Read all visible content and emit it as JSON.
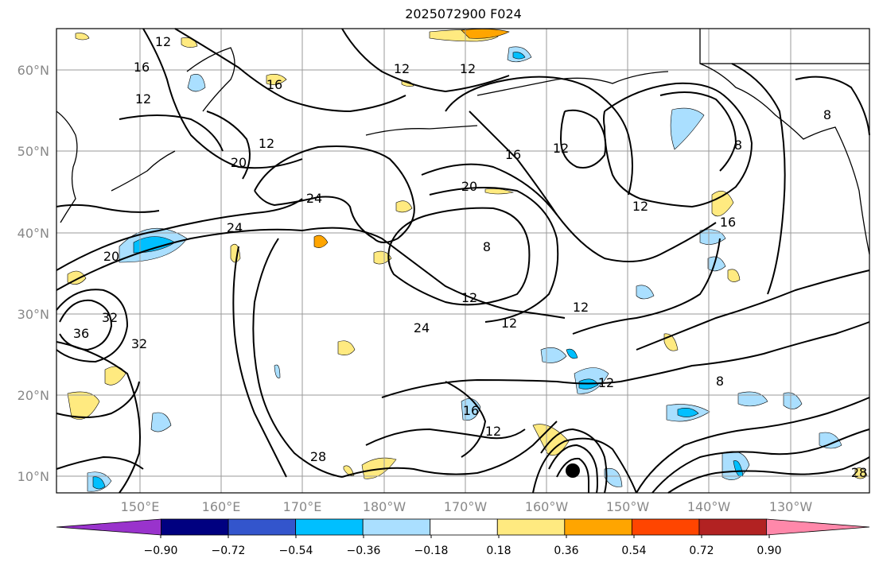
{
  "title": "2025072900 F024",
  "map": {
    "lat_labels": [
      "60°N",
      "50°N",
      "40°N",
      "30°N",
      "20°N",
      "10°N"
    ],
    "lon_labels": [
      "150°E",
      "160°E",
      "170°E",
      "180°W",
      "170°W",
      "160°W",
      "150°W",
      "140°W",
      "130°W"
    ],
    "contour_labels": [
      "12",
      "12",
      "12",
      "12",
      "16",
      "16",
      "16",
      "16",
      "20",
      "20",
      "20",
      "24",
      "24",
      "24",
      "28",
      "28",
      "32",
      "32",
      "36",
      "8",
      "8",
      "8",
      "8",
      "12",
      "12",
      "12",
      "12",
      "12",
      "12",
      "12",
      "16",
      "12"
    ],
    "colors": {
      "contour": "#000000",
      "coast": "#000000",
      "grid": "#9a9a9a"
    }
  },
  "colorbar": {
    "ticks": [
      "−0.90",
      "−0.72",
      "−0.54",
      "−0.36",
      "−0.18",
      "0.18",
      "0.36",
      "0.54",
      "0.72",
      "0.90"
    ],
    "colors": [
      "#9933cc",
      "#000080",
      "#3355cc",
      "#00bfff",
      "#aadfff",
      "#ffffff",
      "#ffea80",
      "#ffa500",
      "#ff4500",
      "#b22222",
      "#ff88aa"
    ]
  }
}
